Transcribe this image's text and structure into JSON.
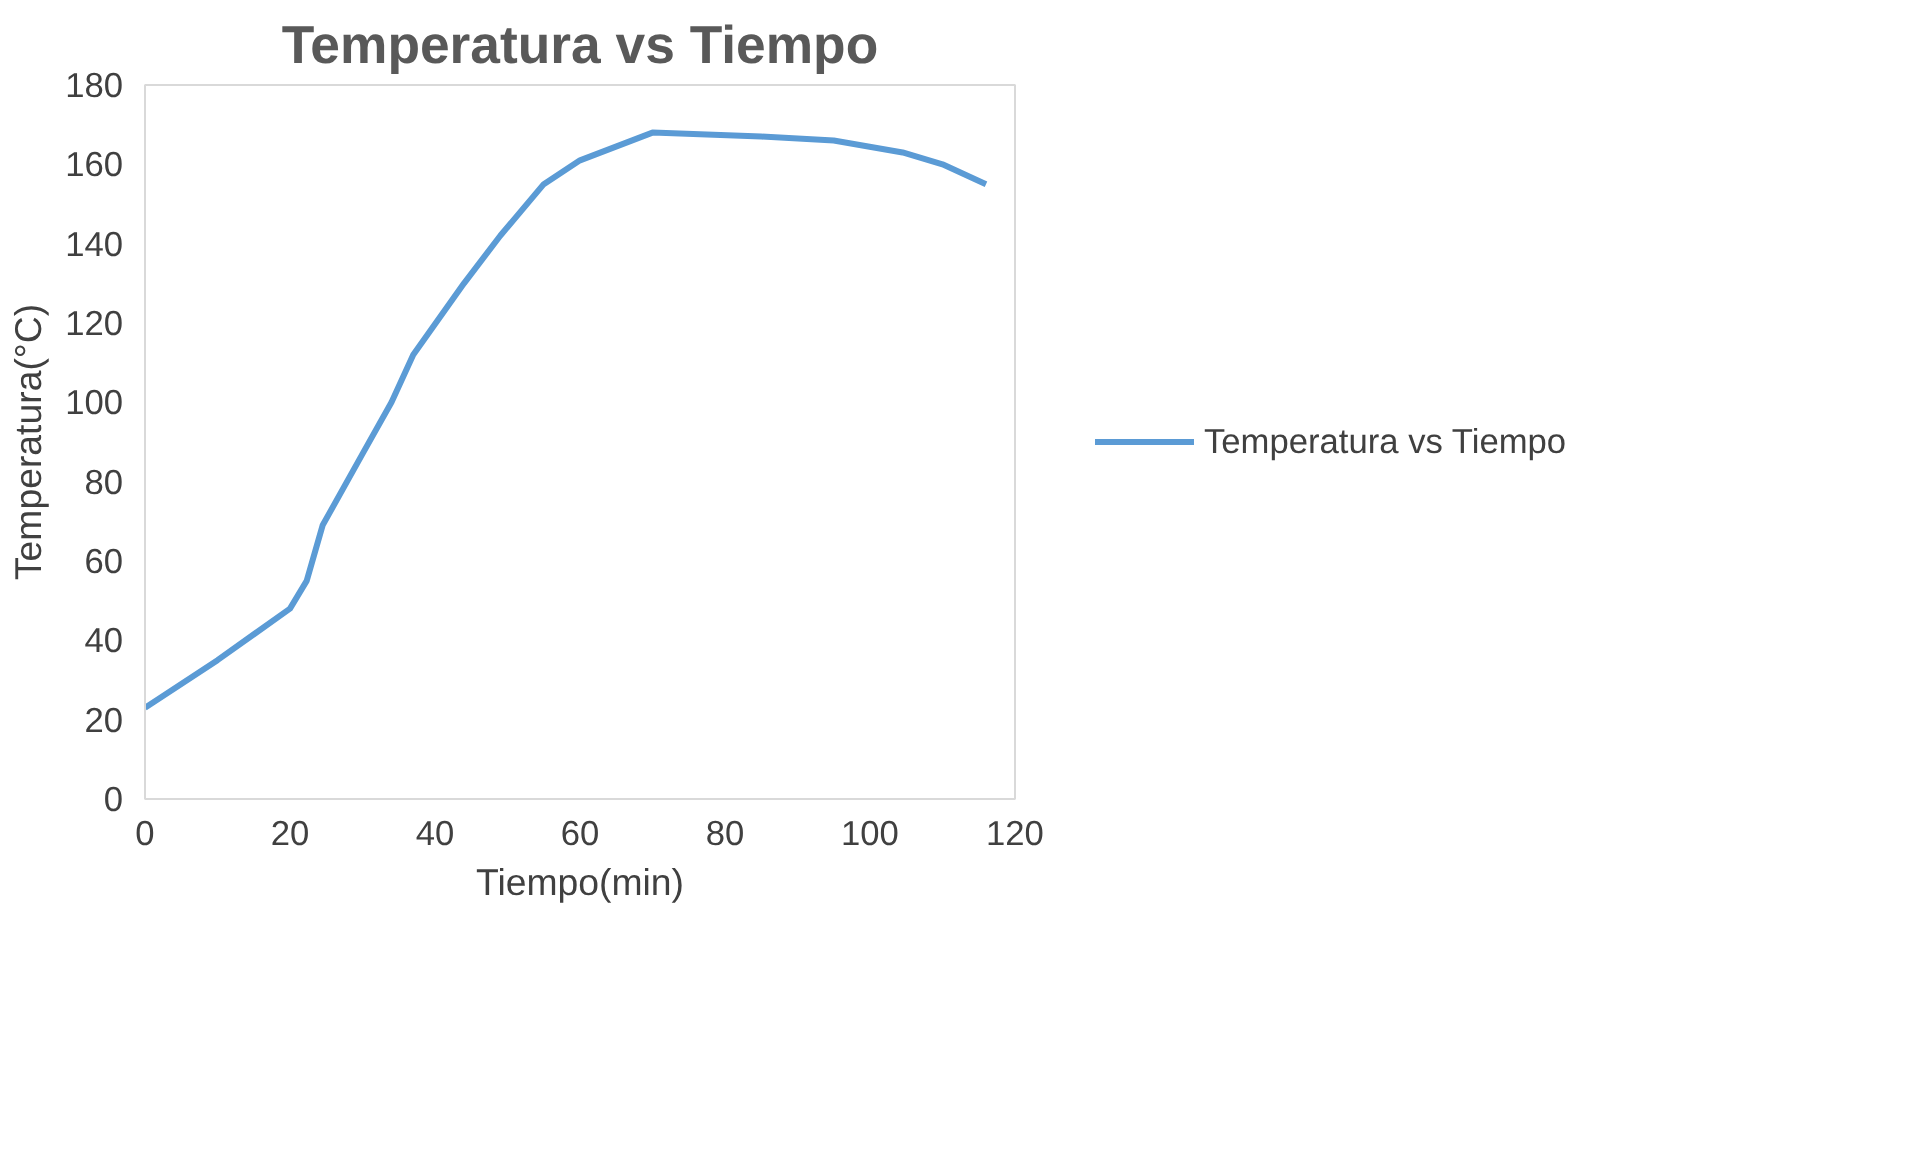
{
  "chart_data": {
    "type": "line",
    "title": "Temperatura vs Tiempo",
    "xlabel": "Tiempo(min)",
    "ylabel": "Temperatura(°C)",
    "xlim": [
      0,
      120
    ],
    "xticks": [
      0,
      20,
      40,
      60,
      80,
      100,
      120
    ],
    "ylim": [
      0,
      180
    ],
    "yticks": [
      0,
      20,
      40,
      60,
      80,
      100,
      120,
      140,
      160,
      180
    ],
    "grid": false,
    "legend": "right",
    "marker": "none",
    "line_style": "solid",
    "series": [
      {
        "name": "Temperatura vs Tiempo",
        "color": "#5b9bd5",
        "x": [
          0,
          10,
          20,
          22.3,
          24.5,
          30,
          34,
          37,
          44,
          49,
          55,
          60,
          70,
          85,
          95,
          104.5,
          110,
          116
        ],
        "values": [
          23,
          35,
          48,
          55,
          69,
          87,
          100,
          112,
          130,
          142,
          155,
          161,
          168,
          167,
          166,
          163,
          160,
          155
        ]
      }
    ]
  }
}
